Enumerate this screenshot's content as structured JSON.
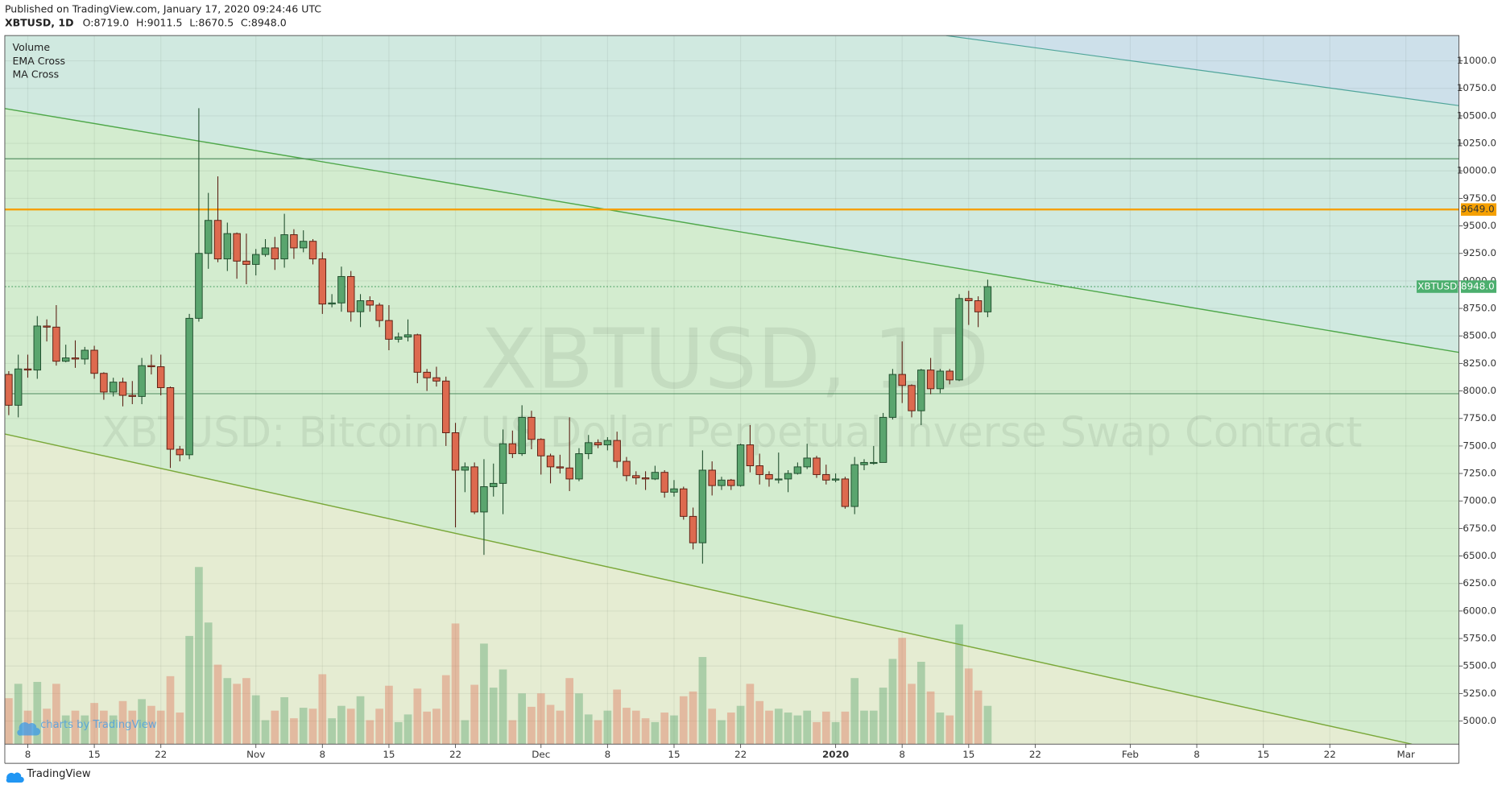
{
  "chart_data": {
    "type": "candlestick",
    "header": "Published on TradingView.com, January 17, 2020 09:24:46 UTC",
    "symbol": "XBTUSD, 1D",
    "ohlc_labels": [
      "O:8719.0",
      "H:9011.5",
      "L:8670.5",
      "C:8948.0"
    ],
    "indicators": [
      "Volume",
      "EMA Cross",
      "MA Cross"
    ],
    "watermark": "XBTUSD, 1D",
    "watermark_subtitle": "XBTUSD: Bitcoin / US Dollar Perpetual Inverse Swap Contract",
    "x": [
      "2019-10-06",
      "2019-10-07",
      "2019-10-08",
      "2019-10-09",
      "2019-10-10",
      "2019-10-11",
      "2019-10-12",
      "2019-10-13",
      "2019-10-14",
      "2019-10-15",
      "2019-10-16",
      "2019-10-17",
      "2019-10-18",
      "2019-10-19",
      "2019-10-20",
      "2019-10-21",
      "2019-10-22",
      "2019-10-23",
      "2019-10-24",
      "2019-10-25",
      "2019-10-26",
      "2019-10-27",
      "2019-10-28",
      "2019-10-29",
      "2019-10-30",
      "2019-10-31",
      "2019-11-01",
      "2019-11-02",
      "2019-11-03",
      "2019-11-04",
      "2019-11-05",
      "2019-11-06",
      "2019-11-07",
      "2019-11-08",
      "2019-11-09",
      "2019-11-10",
      "2019-11-11",
      "2019-11-12",
      "2019-11-13",
      "2019-11-14",
      "2019-11-15",
      "2019-11-16",
      "2019-11-17",
      "2019-11-18",
      "2019-11-19",
      "2019-11-20",
      "2019-11-21",
      "2019-11-22",
      "2019-11-23",
      "2019-11-24",
      "2019-11-25",
      "2019-11-26",
      "2019-11-27",
      "2019-11-28",
      "2019-11-29",
      "2019-11-30",
      "2019-12-01",
      "2019-12-02",
      "2019-12-03",
      "2019-12-04",
      "2019-12-05",
      "2019-12-06",
      "2019-12-07",
      "2019-12-08",
      "2019-12-09",
      "2019-12-10",
      "2019-12-11",
      "2019-12-12",
      "2019-12-13",
      "2019-12-14",
      "2019-12-15",
      "2019-12-16",
      "2019-12-17",
      "2019-12-18",
      "2019-12-19",
      "2019-12-20",
      "2019-12-21",
      "2019-12-22",
      "2019-12-23",
      "2019-12-24",
      "2019-12-25",
      "2019-12-26",
      "2019-12-27",
      "2019-12-28",
      "2019-12-29",
      "2019-12-30",
      "2019-12-31",
      "2020-01-01",
      "2020-01-02",
      "2020-01-03",
      "2020-01-04",
      "2020-01-05",
      "2020-01-06",
      "2020-01-07",
      "2020-01-08",
      "2020-01-09",
      "2020-01-10",
      "2020-01-11",
      "2020-01-12",
      "2020-01-13",
      "2020-01-14",
      "2020-01-15",
      "2020-01-16",
      "2020-01-17"
    ],
    "open": [
      8150,
      7870,
      8200,
      8190,
      8590,
      8580,
      8270,
      8300,
      8290,
      8370,
      8160,
      7990,
      8080,
      7960,
      7950,
      8230,
      8220,
      8030,
      7470,
      7420,
      8660,
      9250,
      9550,
      9200,
      9430,
      9180,
      9150,
      9240,
      9300,
      9200,
      9420,
      9300,
      9360,
      9200,
      8790,
      8800,
      9040,
      8720,
      8820,
      8780,
      8640,
      8470,
      8490,
      8510,
      8170,
      8120,
      8090,
      7620,
      7280,
      7310,
      6900,
      7130,
      7160,
      7520,
      7430,
      7760,
      7560,
      7410,
      7310,
      7300,
      7200,
      7430,
      7530,
      7510,
      7550,
      7360,
      7230,
      7210,
      7200,
      7260,
      7080,
      7110,
      6860,
      6620,
      7280,
      7140,
      7190,
      7140,
      7510,
      7320,
      7240,
      7200,
      7200,
      7250,
      7310,
      7390,
      7240,
      7190,
      7200,
      6950,
      7330,
      7350,
      7350,
      7760,
      8150,
      8050,
      7820,
      8190,
      8020,
      8180,
      8100,
      8840,
      8820,
      8719
    ],
    "high": [
      8180,
      8330,
      8330,
      8680,
      8650,
      8780,
      8420,
      8460,
      8400,
      8410,
      8170,
      8120,
      8120,
      8090,
      8300,
      8330,
      8330,
      8040,
      7500,
      8700,
      10570,
      9800,
      9950,
      9530,
      9440,
      9430,
      9290,
      9380,
      9400,
      9610,
      9470,
      9460,
      9380,
      9260,
      8880,
      9130,
      9090,
      8880,
      8860,
      8800,
      8780,
      8530,
      8650,
      8520,
      8200,
      8220,
      8130,
      7710,
      7350,
      7350,
      7380,
      7340,
      7650,
      7640,
      7870,
      7820,
      7570,
      7430,
      7420,
      7760,
      7480,
      7600,
      7560,
      7580,
      7630,
      7400,
      7270,
      7270,
      7320,
      7280,
      7190,
      7130,
      6940,
      7460,
      7360,
      7220,
      7200,
      7520,
      7690,
      7430,
      7270,
      7440,
      7280,
      7350,
      7520,
      7410,
      7330,
      7250,
      7220,
      7400,
      7380,
      7500,
      7800,
      8200,
      8450,
      8060,
      8200,
      8300,
      8200,
      8200,
      8880,
      8910,
      8860,
      9011.5
    ],
    "low": [
      7780,
      7760,
      8120,
      8110,
      8450,
      8230,
      8260,
      8210,
      8240,
      8110,
      7920,
      7950,
      7860,
      7880,
      7880,
      8150,
      7960,
      7300,
      7360,
      7380,
      8630,
      9110,
      9170,
      9090,
      9020,
      8970,
      9050,
      9220,
      9100,
      9120,
      9200,
      9260,
      9150,
      8700,
      8760,
      8720,
      8630,
      8580,
      8720,
      8580,
      8370,
      8440,
      8450,
      8070,
      8000,
      8040,
      7500,
      6760,
      7080,
      6880,
      6510,
      7040,
      6880,
      7390,
      7410,
      7470,
      7240,
      7160,
      7250,
      7090,
      7180,
      7380,
      7480,
      7460,
      7300,
      7180,
      7150,
      7100,
      7190,
      7030,
      7040,
      6830,
      6560,
      6430,
      7050,
      7100,
      7100,
      7130,
      7260,
      7150,
      7130,
      7160,
      7080,
      7240,
      7290,
      7210,
      7150,
      7170,
      6930,
      6880,
      7280,
      7330,
      7350,
      7740,
      7890,
      7760,
      7690,
      7970,
      7980,
      8060,
      8090,
      8600,
      8580,
      8670.5
    ],
    "close": [
      7870,
      8200,
      8190,
      8590,
      8580,
      8270,
      8300,
      8290,
      8370,
      8160,
      7990,
      8080,
      7960,
      7950,
      8230,
      8220,
      8030,
      7470,
      7420,
      8660,
      9250,
      9550,
      9200,
      9430,
      9180,
      9150,
      9240,
      9300,
      9200,
      9420,
      9300,
      9360,
      9200,
      8790,
      8800,
      9040,
      8720,
      8820,
      8780,
      8640,
      8470,
      8490,
      8510,
      8170,
      8120,
      8090,
      7620,
      7280,
      7310,
      6900,
      7130,
      7160,
      7520,
      7430,
      7760,
      7560,
      7410,
      7310,
      7300,
      7200,
      7430,
      7530,
      7510,
      7550,
      7360,
      7230,
      7210,
      7200,
      7260,
      7080,
      7110,
      6860,
      6620,
      7280,
      7140,
      7190,
      7140,
      7510,
      7320,
      7240,
      7200,
      7200,
      7250,
      7310,
      7390,
      7240,
      7190,
      7200,
      6950,
      7330,
      7350,
      7350,
      7760,
      8150,
      8050,
      7820,
      8190,
      8020,
      8180,
      8100,
      8840,
      8820,
      8719,
      8948
    ],
    "volume": [
      48,
      63,
      35,
      65,
      37,
      63,
      30,
      35,
      30,
      43,
      35,
      30,
      45,
      35,
      47,
      40,
      35,
      71,
      33,
      113,
      185,
      127,
      83,
      69,
      63,
      69,
      51,
      25,
      35,
      49,
      27,
      38,
      37,
      73,
      27,
      40,
      37,
      50,
      25,
      37,
      61,
      23,
      31,
      58,
      34,
      37,
      72,
      126,
      25,
      62,
      105,
      59,
      78,
      25,
      53,
      39,
      53,
      41,
      35,
      69,
      53,
      31,
      25,
      35,
      57,
      38,
      35,
      27,
      23,
      33,
      30,
      50,
      55,
      91,
      37,
      25,
      33,
      40,
      63,
      45,
      35,
      37,
      33,
      30,
      35,
      23,
      34,
      23,
      34,
      69,
      35,
      35,
      59,
      89,
      111,
      63,
      86,
      55,
      33,
      30,
      125,
      79,
      56,
      40
    ],
    "up_color": "#5aa56e",
    "down_color": "#dd6a4f",
    "xlim": [
      "2019-10-05T14:00Z",
      "2020-03-06T14:00Z"
    ],
    "xticks": [
      {
        "value": "2019-10-08",
        "label": "8"
      },
      {
        "value": "2019-10-15",
        "label": "15"
      },
      {
        "value": "2019-10-22",
        "label": "22"
      },
      {
        "value": "2019-11-01",
        "label": "Nov"
      },
      {
        "value": "2019-11-08",
        "label": "8"
      },
      {
        "value": "2019-11-15",
        "label": "15"
      },
      {
        "value": "2019-11-22",
        "label": "22"
      },
      {
        "value": "2019-12-01",
        "label": "Dec"
      },
      {
        "value": "2019-12-08",
        "label": "8"
      },
      {
        "value": "2019-12-15",
        "label": "15"
      },
      {
        "value": "2019-12-22",
        "label": "22"
      },
      {
        "value": "2020-01-01",
        "label": "2020"
      },
      {
        "value": "2020-01-08",
        "label": "8"
      },
      {
        "value": "2020-01-15",
        "label": "15"
      },
      {
        "value": "2020-01-22",
        "label": "22"
      },
      {
        "value": "2020-02-01",
        "label": "Feb"
      },
      {
        "value": "2020-02-08",
        "label": "8"
      },
      {
        "value": "2020-02-15",
        "label": "15"
      },
      {
        "value": "2020-02-22",
        "label": "22"
      },
      {
        "value": "2020-03-01",
        "label": "Mar"
      }
    ],
    "ylim": [
      4790,
      11230
    ],
    "yticks": [
      {
        "value": 5000,
        "label": "5000.0"
      },
      {
        "value": 5250,
        "label": "5250.0"
      },
      {
        "value": 5500,
        "label": "5500.0"
      },
      {
        "value": 5750,
        "label": "5750.0"
      },
      {
        "value": 6000,
        "label": "6000.0"
      },
      {
        "value": 6250,
        "label": "6250.0"
      },
      {
        "value": 6500,
        "label": "6500.0"
      },
      {
        "value": 6750,
        "label": "6750.0"
      },
      {
        "value": 7000,
        "label": "7000.0"
      },
      {
        "value": 7250,
        "label": "7250.0"
      },
      {
        "value": 7500,
        "label": "7500.0"
      },
      {
        "value": 7750,
        "label": "7750.0"
      },
      {
        "value": 8000,
        "label": "8000.0"
      },
      {
        "value": 8250,
        "label": "8250.0"
      },
      {
        "value": 8500,
        "label": "8500.0"
      },
      {
        "value": 8750,
        "label": "8750.0"
      },
      {
        "value": 9000,
        "label": "9000.0"
      },
      {
        "value": 9250,
        "label": "9250.0"
      },
      {
        "value": 9500,
        "label": "9500.0"
      },
      {
        "value": 9750,
        "label": "9750.0"
      },
      {
        "value": 10000,
        "label": "10000.0"
      },
      {
        "value": 10250,
        "label": "10250.0"
      },
      {
        "value": 10500,
        "label": "10500.0"
      },
      {
        "value": 10750,
        "label": "10750.0"
      },
      {
        "value": 11000,
        "label": "11000.0"
      }
    ],
    "grid": true,
    "horizontal_lines": [
      10110,
      7975
    ],
    "alert_line": {
      "value": 9649,
      "label": "9649.0",
      "color": "#f5a000"
    },
    "last_price": {
      "value": 8948,
      "label": "8948.0",
      "name": "XBTUSD"
    },
    "credit": "charts by TradingView",
    "branding": "TradingView"
  }
}
